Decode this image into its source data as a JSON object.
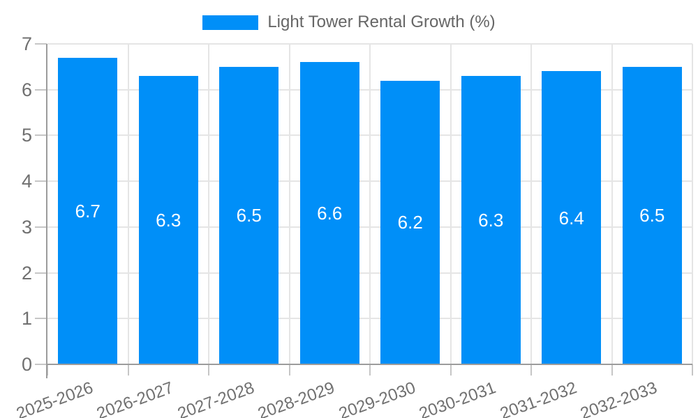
{
  "chart": {
    "legend": {
      "label": "Light Tower Rental Growth (%)"
    },
    "colors": {
      "bar": "#008FF8",
      "grid": "#E5E5E5",
      "tick": "#C6C6C6",
      "axis": "#9C9C9C",
      "tick_label": "#707070",
      "legend_text": "#666666",
      "value_label": "#FFFFFF",
      "background": "#FFFFFF"
    }
  },
  "chart_data": {
    "type": "bar",
    "title": "",
    "series_name": "Light Tower Rental Growth (%)",
    "categories": [
      "2025-2026",
      "2026-2027",
      "2027-2028",
      "2028-2029",
      "2029-2030",
      "2030-2031",
      "2031-2032",
      "2032-2033"
    ],
    "values": [
      6.7,
      6.3,
      6.5,
      6.6,
      6.2,
      6.3,
      6.4,
      6.5
    ],
    "bar_labels": [
      "6.7",
      "6.3",
      "6.5",
      "6.6",
      "6.2",
      "6.3",
      "6.4",
      "6.5"
    ],
    "xlabel": "",
    "ylabel": "",
    "ylim": [
      0,
      7
    ],
    "yticks": [
      "0",
      "1",
      "2",
      "3",
      "4",
      "5",
      "6",
      "7"
    ],
    "grid": true,
    "legend_position": "top",
    "x_label_rotation_deg": -20,
    "value_labels_position": "inside-center"
  }
}
